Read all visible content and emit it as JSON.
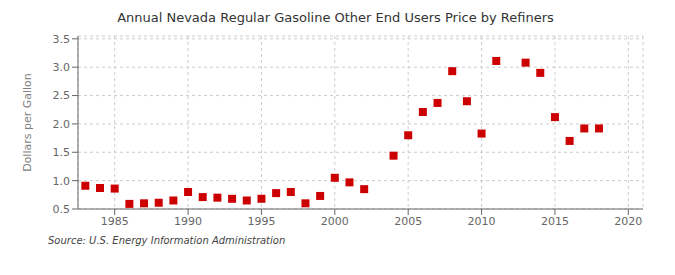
{
  "chart_data": {
    "type": "scatter",
    "title": "Annual Nevada Regular Gasoline Other End Users Price by Refiners",
    "ylabel": "Dollars per Gallon",
    "annotations": [
      "Source: U.S. Energy Information Administration"
    ],
    "x": [
      1983,
      1984,
      1985,
      1986,
      1987,
      1988,
      1989,
      1990,
      1991,
      1992,
      1993,
      1994,
      1995,
      1996,
      1997,
      1998,
      1999,
      2000,
      2001,
      2002,
      2004,
      2005,
      2006,
      2007,
      2008,
      2009,
      2010,
      2011,
      2013,
      2014,
      2015,
      2016,
      2017,
      2018
    ],
    "values": [
      0.91,
      0.87,
      0.86,
      0.59,
      0.6,
      0.61,
      0.65,
      0.8,
      0.71,
      0.7,
      0.68,
      0.65,
      0.68,
      0.78,
      0.8,
      0.6,
      0.73,
      1.05,
      0.97,
      0.85,
      1.44,
      1.8,
      2.21,
      2.37,
      2.93,
      2.4,
      1.83,
      3.11,
      3.08,
      2.9,
      2.12,
      1.7,
      1.92,
      1.92
    ],
    "color": "#cc0000",
    "marker": "square",
    "xlim": [
      1982.5,
      2021
    ],
    "ylim": [
      0.5,
      3.55
    ],
    "xticks": [
      1985,
      1990,
      1995,
      2000,
      2005,
      2010,
      2015,
      2020
    ],
    "yticks": [
      0.5,
      {
        "value": 1,
        "label": "1.0"
      },
      1.5,
      {
        "value": 2,
        "label": "2.0"
      },
      2.5,
      {
        "value": 3,
        "label": "3.0"
      },
      3.5
    ],
    "grid": true
  }
}
